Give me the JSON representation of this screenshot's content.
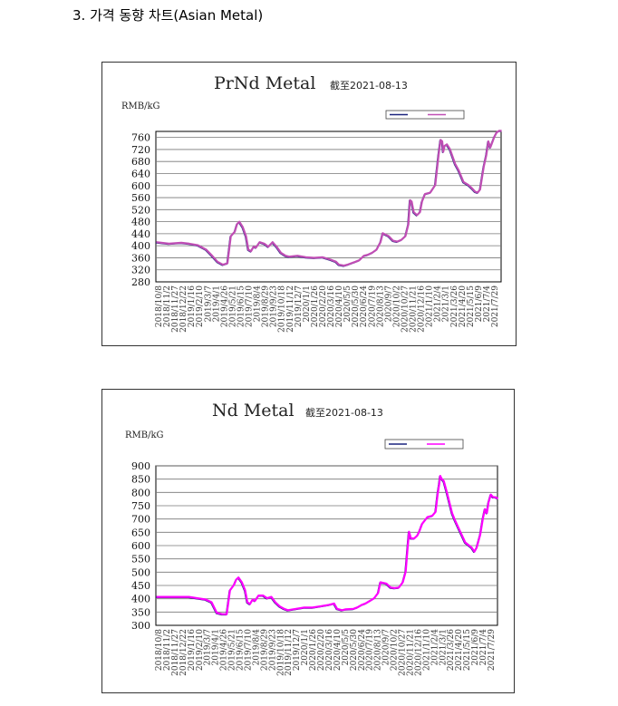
{
  "heading": "3. 가격 동향 차트(Asian Metal)",
  "chart_data": [
    {
      "type": "line",
      "title": "PrNd Metal",
      "subtitle": "截至2021-08-13",
      "ylabel": "RMB/kG",
      "ylim": [
        280,
        780
      ],
      "yticks": [
        280,
        320,
        360,
        400,
        440,
        480,
        520,
        560,
        600,
        640,
        680,
        720,
        760
      ],
      "grid": true,
      "legend_position": "top-right",
      "x_tick_labels": [
        "2018/10/8",
        "2018/11/2",
        "2018/11/27",
        "2018/12/22",
        "2019/1/16",
        "2019/2/10",
        "2019/3/7",
        "2019/4/1",
        "2019/4/26",
        "2019/5/21",
        "2019/6/15",
        "2019/7/10",
        "2019/8/4",
        "2019/8/29",
        "2019/9/23",
        "2019/10/18",
        "2019/11/12",
        "2019/12/7",
        "2020/1/1",
        "2020/1/26",
        "2020/2/20",
        "2020/3/16",
        "2020/4/10",
        "2020/5/5",
        "2020/5/30",
        "2020/6/24",
        "2020/7/19",
        "2020/8/13",
        "2020/9/7",
        "2020/10/2",
        "2020/10/27",
        "2020/11/21",
        "2020/12/16",
        "2021/1/10",
        "2021/2/4",
        "2021/3/1",
        "2021/3/26",
        "2021/4/20",
        "2021/5/15",
        "2021/6/9",
        "2021/7/4",
        "2021/7/29"
      ],
      "x": [
        "2018-10-08",
        "2018-11-15",
        "2018-12-22",
        "2019-01-15",
        "2019-02-10",
        "2019-03-07",
        "2019-03-25",
        "2019-04-10",
        "2019-04-26",
        "2019-05-10",
        "2019-05-20",
        "2019-06-01",
        "2019-06-08",
        "2019-06-15",
        "2019-06-25",
        "2019-07-05",
        "2019-07-12",
        "2019-07-20",
        "2019-07-28",
        "2019-08-04",
        "2019-08-15",
        "2019-08-29",
        "2019-09-10",
        "2019-09-23",
        "2019-10-05",
        "2019-10-18",
        "2019-11-01",
        "2019-11-12",
        "2019-12-07",
        "2020-01-01",
        "2020-01-26",
        "2020-02-20",
        "2020-03-16",
        "2020-04-01",
        "2020-04-10",
        "2020-04-25",
        "2020-05-05",
        "2020-05-30",
        "2020-06-10",
        "2020-06-24",
        "2020-07-05",
        "2020-07-19",
        "2020-08-01",
        "2020-08-13",
        "2020-08-20",
        "2020-09-07",
        "2020-09-20",
        "2020-10-02",
        "2020-10-15",
        "2020-10-27",
        "2020-11-05",
        "2020-11-10",
        "2020-11-15",
        "2020-11-21",
        "2020-12-01",
        "2020-12-10",
        "2020-12-16",
        "2020-12-25",
        "2021-01-10",
        "2021-01-25",
        "2021-02-04",
        "2021-02-10",
        "2021-02-15",
        "2021-02-18",
        "2021-02-22",
        "2021-03-01",
        "2021-03-10",
        "2021-03-26",
        "2021-04-05",
        "2021-04-20",
        "2021-05-05",
        "2021-05-15",
        "2021-05-25",
        "2021-06-02",
        "2021-06-09",
        "2021-06-20",
        "2021-06-28",
        "2021-07-04",
        "2021-07-10",
        "2021-07-15",
        "2021-07-22",
        "2021-07-29",
        "2021-08-05",
        "2021-08-13"
      ],
      "series": [
        {
          "name": "",
          "color": "#c04eb4",
          "values": [
            410,
            405,
            408,
            405,
            400,
            385,
            365,
            345,
            335,
            340,
            430,
            445,
            470,
            478,
            460,
            430,
            385,
            380,
            395,
            392,
            410,
            405,
            395,
            410,
            395,
            375,
            365,
            362,
            365,
            360,
            358,
            360,
            352,
            345,
            335,
            332,
            335,
            345,
            350,
            365,
            368,
            375,
            385,
            410,
            440,
            430,
            415,
            412,
            418,
            430,
            470,
            550,
            545,
            510,
            500,
            510,
            545,
            570,
            575,
            600,
            700,
            750,
            745,
            710,
            730,
            735,
            720,
            670,
            650,
            610,
            600,
            590,
            578,
            575,
            585,
            660,
            700,
            745,
            725,
            740,
            760,
            775,
            780,
            780
          ]
        }
      ]
    },
    {
      "type": "line",
      "title": "Nd Metal",
      "subtitle": "截至2021-08-13",
      "ylabel": "RMB/kG",
      "ylim": [
        300,
        900
      ],
      "yticks": [
        300,
        350,
        400,
        450,
        500,
        550,
        600,
        650,
        700,
        750,
        800,
        850,
        900
      ],
      "grid": true,
      "legend_position": "top-right",
      "x_tick_labels": [
        "2018/10/8",
        "2018/11/2",
        "2018/11/27",
        "2018/12/22",
        "2019/1/16",
        "2019/2/10",
        "2019/3/7",
        "2019/4/1",
        "2019/4/26",
        "2019/5/21",
        "2019/6/15",
        "2019/7/10",
        "2019/8/4",
        "2019/8/29",
        "2019/9/23",
        "2019/10/18",
        "2019/11/12",
        "2019/12/7",
        "2020/1/1",
        "2020/1/26",
        "2020/2/20",
        "2020/3/16",
        "2020/4/10",
        "2020/5/5",
        "2020/5/30",
        "2020/6/24",
        "2020/7/19",
        "2020/8/13",
        "2020/9/7",
        "2020/10/2",
        "2020/10/27",
        "2020/11/21",
        "2020/12/16",
        "2021/1/10",
        "2021/2/4",
        "2021/3/1",
        "2021/3/26",
        "2021/4/20",
        "2021/5/15",
        "2021/6/9",
        "2021/7/4",
        "2021/7/29"
      ],
      "x": [
        "2018-10-08",
        "2018-11-15",
        "2018-12-22",
        "2019-01-15",
        "2019-02-10",
        "2019-03-07",
        "2019-03-25",
        "2019-04-10",
        "2019-04-26",
        "2019-05-10",
        "2019-05-20",
        "2019-06-01",
        "2019-06-08",
        "2019-06-15",
        "2019-06-25",
        "2019-07-05",
        "2019-07-12",
        "2019-07-20",
        "2019-07-28",
        "2019-08-04",
        "2019-08-15",
        "2019-08-29",
        "2019-09-10",
        "2019-09-23",
        "2019-10-05",
        "2019-10-18",
        "2019-11-01",
        "2019-11-12",
        "2019-12-07",
        "2020-01-01",
        "2020-01-26",
        "2020-02-20",
        "2020-03-16",
        "2020-04-01",
        "2020-04-10",
        "2020-04-25",
        "2020-05-05",
        "2020-05-30",
        "2020-06-10",
        "2020-06-24",
        "2020-07-05",
        "2020-07-19",
        "2020-08-01",
        "2020-08-13",
        "2020-08-20",
        "2020-09-07",
        "2020-09-20",
        "2020-10-02",
        "2020-10-15",
        "2020-10-27",
        "2020-11-05",
        "2020-11-10",
        "2020-11-15",
        "2020-11-21",
        "2020-12-01",
        "2020-12-10",
        "2020-12-16",
        "2020-12-25",
        "2021-01-10",
        "2021-01-25",
        "2021-02-04",
        "2021-02-10",
        "2021-02-15",
        "2021-02-18",
        "2021-02-22",
        "2021-03-01",
        "2021-03-10",
        "2021-03-26",
        "2021-04-05",
        "2021-04-20",
        "2021-05-05",
        "2021-05-15",
        "2021-05-25",
        "2021-06-02",
        "2021-06-09",
        "2021-06-20",
        "2021-06-28",
        "2021-07-04",
        "2021-07-10",
        "2021-07-15",
        "2021-07-22",
        "2021-07-29",
        "2021-08-05",
        "2021-08-13"
      ],
      "series": [
        {
          "name": "",
          "color": "#ff00ff",
          "values": [
            405,
            405,
            405,
            405,
            400,
            395,
            385,
            345,
            340,
            340,
            430,
            450,
            470,
            478,
            460,
            430,
            385,
            378,
            395,
            390,
            410,
            410,
            400,
            405,
            385,
            370,
            360,
            355,
            360,
            365,
            365,
            370,
            375,
            380,
            360,
            355,
            358,
            360,
            365,
            375,
            380,
            390,
            400,
            420,
            460,
            455,
            440,
            438,
            440,
            460,
            500,
            580,
            650,
            625,
            625,
            635,
            650,
            680,
            705,
            710,
            725,
            790,
            830,
            860,
            850,
            840,
            800,
            720,
            690,
            650,
            610,
            600,
            590,
            575,
            590,
            640,
            700,
            735,
            720,
            760,
            790,
            780,
            780,
            775
          ]
        }
      ]
    }
  ]
}
